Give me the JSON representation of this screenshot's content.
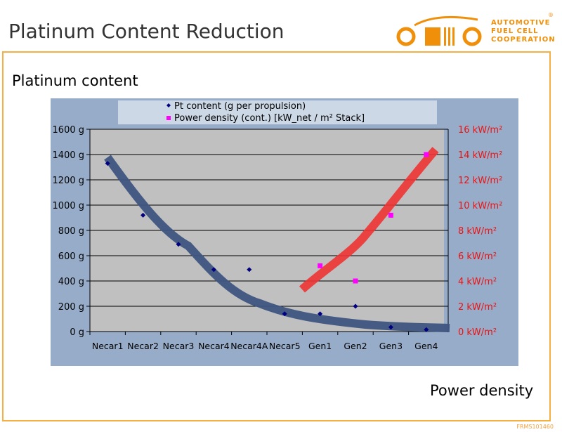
{
  "header": {
    "title": "Platinum Content Reduction",
    "logo_text": [
      "AUTOMOTIVE",
      "FUEL CELL",
      "COOPERATION"
    ],
    "logo_reg": "®"
  },
  "slide": {
    "subtitle": "Platinum content",
    "bottom_label": "Power density",
    "code": "FRMS101460"
  },
  "colors": {
    "accent": "#f0900a",
    "pt": "#000080",
    "power": "#ff00ff",
    "pt_trend": "#3f5581",
    "power_trend": "#ee3333",
    "plot_bg": "#c0c0c0",
    "chart_bg": "#97acc8"
  },
  "chart_data": {
    "type": "scatter",
    "categories": [
      "Necar1",
      "Necar2",
      "Necar3",
      "Necar4",
      "Necar4A",
      "Necar5",
      "Gen1",
      "Gen2",
      "Gen3",
      "Gen4"
    ],
    "series": [
      {
        "name": "Pt content (g per propulsion)",
        "axis": "left",
        "marker": "diamond",
        "values": [
          1330,
          920,
          690,
          490,
          490,
          140,
          140,
          200,
          35,
          15
        ]
      },
      {
        "name": "Power density (cont.) [kW_net / m² Stack]",
        "axis": "right",
        "marker": "square",
        "values": [
          null,
          null,
          null,
          null,
          null,
          null,
          5.2,
          4,
          9.2,
          14
        ]
      }
    ],
    "y_left": {
      "range": [
        0,
        1600
      ],
      "ticks": [
        "0 g",
        "200 g",
        "400 g",
        "600 g",
        "800 g",
        "1000 g",
        "1200 g",
        "1400 g",
        "1600 g"
      ]
    },
    "y_right": {
      "range": [
        0,
        16
      ],
      "ticks": [
        "0 kW/m²",
        "2 kW/m²",
        "4 kW/m²",
        "6 kW/m²",
        "8 kW/m²",
        "10 kW/m²",
        "12 kW/m²",
        "14 kW/m²",
        "16 kW/m²"
      ]
    },
    "legend": "top",
    "grid": true
  }
}
